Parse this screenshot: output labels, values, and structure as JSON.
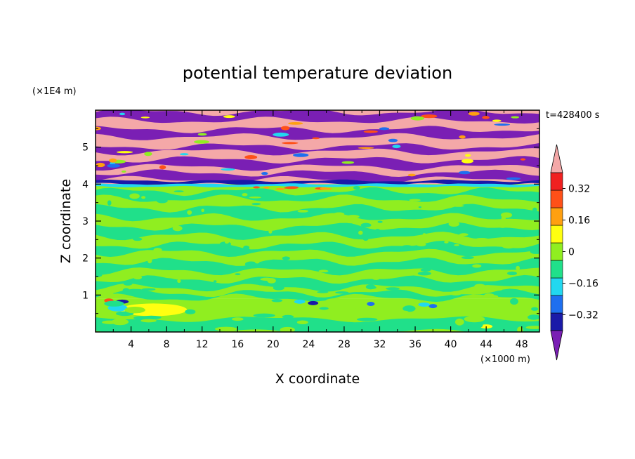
{
  "chart_data": {
    "type": "heatmap",
    "title": "potential temperature deviation",
    "time_label": "t=428400 s",
    "xlabel": "X coordinate",
    "ylabel": "Z coordinate",
    "x_unit": "(×1000 m)",
    "y_unit": "(×1E4 m)",
    "x_range": [
      0,
      50
    ],
    "y_range": [
      0,
      6
    ],
    "x_ticks": [
      4,
      8,
      12,
      16,
      20,
      24,
      28,
      32,
      36,
      40,
      44,
      48
    ],
    "y_ticks": [
      1,
      2,
      3,
      4,
      5
    ],
    "colorbar": {
      "tick_labels": [
        "0.32",
        "0.16",
        "0",
        "−0.16",
        "−0.32"
      ],
      "tick_values": [
        0.32,
        0.16,
        0,
        -0.16,
        -0.32
      ],
      "levels": [
        -0.4,
        -0.32,
        -0.24,
        -0.16,
        -0.08,
        0,
        0.08,
        0.16,
        0.24,
        0.32,
        0.4
      ],
      "colors": [
        "#7a1fb4",
        "#1a1aa8",
        "#1e6ff0",
        "#22d8f0",
        "#20e08a",
        "#90ee20",
        "#ffff10",
        "#ffa010",
        "#ff5018",
        "#f02020",
        "#f4a8a8"
      ]
    },
    "regions": [
      {
        "z_range": [
          4.0,
          6.0
        ],
        "pattern": "alternating bands",
        "colors": [
          "#f4a8a8",
          "#7a1fb4"
        ]
      },
      {
        "z_range": [
          0.9,
          4.0
        ],
        "pattern": "alternating bands",
        "colors": [
          "#90ee20",
          "#20e08a"
        ]
      },
      {
        "z_range": [
          0.0,
          0.9
        ],
        "pattern": "mixed",
        "colors": [
          "#90ee20",
          "#20e08a",
          "#ffff10",
          "#22d8f0"
        ]
      }
    ]
  }
}
